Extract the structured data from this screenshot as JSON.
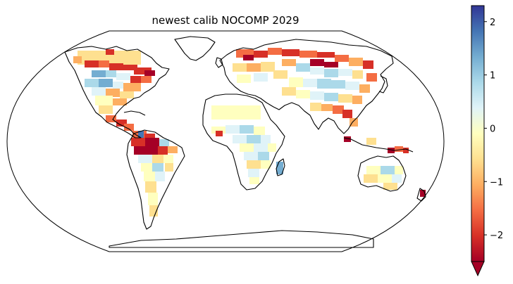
{
  "title": "newest calib NOCOMP 2029",
  "colorbar": {
    "ticks": [
      {
        "value": 2,
        "label": "2"
      },
      {
        "value": 1,
        "label": "1"
      },
      {
        "value": 0,
        "label": "0"
      },
      {
        "value": -1,
        "label": "−1"
      },
      {
        "value": -2,
        "label": "−2"
      }
    ],
    "range": [
      -2.5,
      2.3
    ],
    "extend": "min",
    "colormap": "RdYlBu",
    "colors": [
      "#a50026",
      "#d73027",
      "#f46d43",
      "#fdae61",
      "#fee090",
      "#ffffbf",
      "#e0f3f8",
      "#abd9e9",
      "#74add1",
      "#4575b4",
      "#313695"
    ]
  },
  "map": {
    "projection": "Robinson",
    "ocean_color": "#ffffff",
    "coastline_color": "#000000"
  }
}
